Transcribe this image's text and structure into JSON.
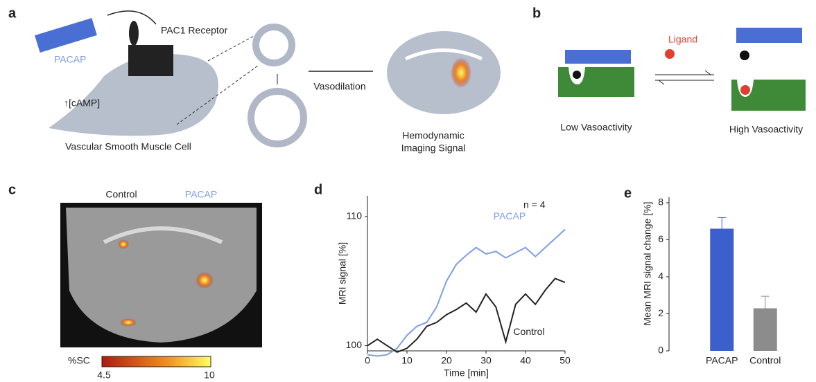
{
  "figure": {
    "panel_a": {
      "label": "a",
      "ligand": "PACAP",
      "receptor": "PAC1 Receptor",
      "camp": "↑[cAMP]",
      "cell": "Vascular Smooth Muscle Cell",
      "arrow": "Vasodilation",
      "signal": [
        "Hemodynamic",
        "Imaging Signal"
      ]
    },
    "panel_b": {
      "label": "b",
      "ligand": "Ligand",
      "low": "Low Vasoactivity",
      "high": "High Vasoactivity"
    },
    "panel_c": {
      "label": "c",
      "left": "Control",
      "right": "PACAP",
      "colorbar": {
        "label": "%SC",
        "min": 4.5,
        "max": 10
      }
    },
    "panel_d_label": "d",
    "panel_e_label": "e"
  },
  "chart_data": [
    {
      "type": "line",
      "x": [
        0,
        2.5,
        5,
        7.5,
        10,
        12.5,
        15,
        17.5,
        20,
        22.5,
        25,
        27.5,
        30,
        32.5,
        35,
        37.5,
        40,
        42.5,
        45,
        47.5,
        50
      ],
      "series": [
        {
          "name": "PACAP",
          "color": "#7f9de8",
          "values": [
            99.3,
            99.2,
            99.3,
            99.8,
            100.8,
            101.5,
            101.8,
            103,
            105,
            106.3,
            107,
            107.6,
            107.1,
            107.3,
            106.8,
            107.2,
            107.6,
            106.9,
            107.6,
            108.3,
            109
          ]
        },
        {
          "name": "Control",
          "color": "#222222",
          "values": [
            100,
            100.5,
            100,
            99.5,
            99.8,
            100.5,
            101.5,
            101.8,
            102.4,
            102.8,
            103.3,
            102.6,
            104,
            103,
            100.3,
            103.2,
            104,
            103.2,
            104.3,
            105.2,
            104.9
          ]
        }
      ],
      "xlim": [
        0,
        50
      ],
      "xticks": [
        0,
        10,
        20,
        30,
        40,
        50
      ],
      "ylim": [
        99.6,
        111.6
      ],
      "yticks": [
        100,
        110
      ],
      "xlabel": "Time [min]",
      "ylabel": "MRI signal [%]",
      "annotation": "n = 4"
    },
    {
      "type": "bar",
      "categories": [
        "PACAP",
        "Control"
      ],
      "values": [
        6.6,
        2.3
      ],
      "errors": [
        0.6,
        0.65
      ],
      "colors": [
        "#3b5fcc",
        "#8c8c8c"
      ],
      "ylim": [
        0,
        8.3
      ],
      "yticks": [
        0,
        2,
        4,
        6,
        8
      ],
      "ylabel": "Mean MRI signal change [%]"
    }
  ]
}
